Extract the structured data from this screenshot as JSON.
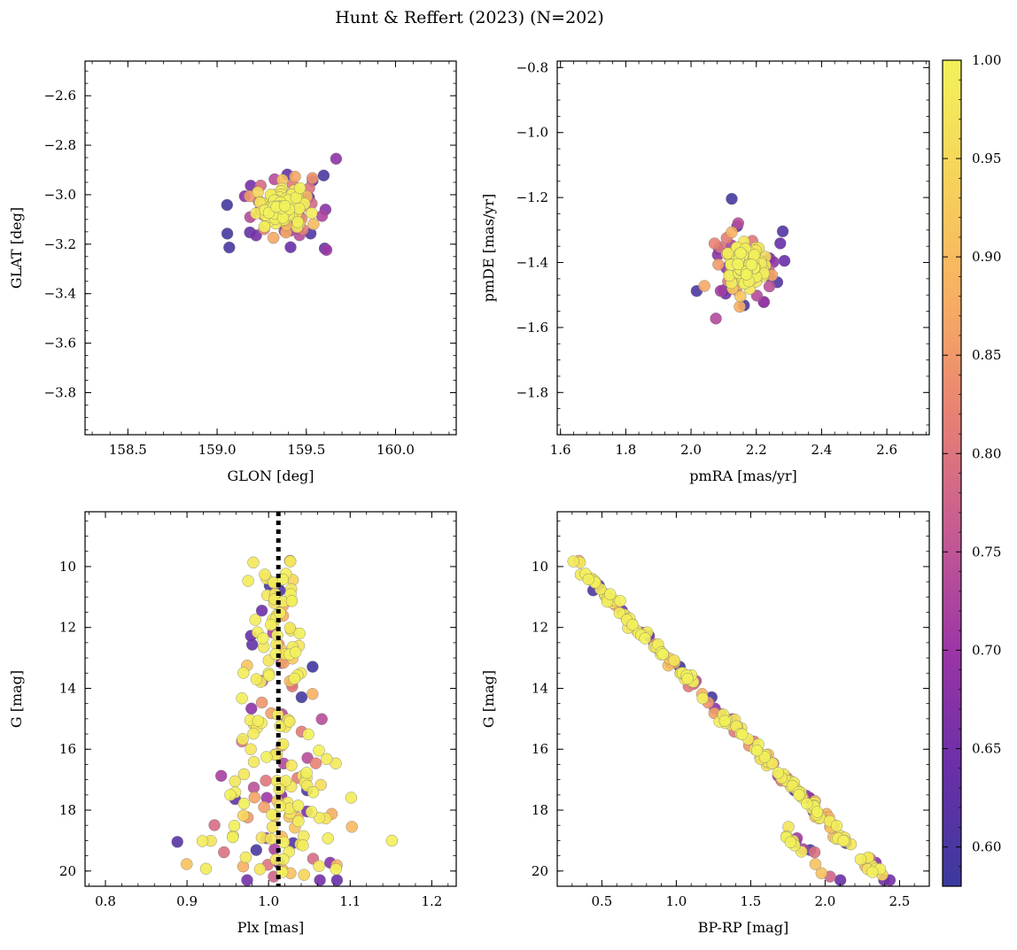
{
  "figure": {
    "title": "Hunt & Reffert (2023) (N=202)"
  },
  "colorbar": {
    "range": [
      0.58,
      1.0
    ],
    "ticks": [
      "0.60",
      "0.65",
      "0.70",
      "0.75",
      "0.80",
      "0.85",
      "0.90",
      "0.95",
      "1.00"
    ],
    "stops": [
      "#3b3a9e",
      "#6a2fa8",
      "#9c35a6",
      "#c65b92",
      "#e88173",
      "#f8af62",
      "#f6d35a",
      "#f2f25a"
    ]
  },
  "chart_data": [
    {
      "id": "sky",
      "type": "scatter",
      "xlabel": "GLON [deg]",
      "ylabel": "GLAT [deg]",
      "xlim": [
        158.26,
        160.34
      ],
      "ylim": [
        -3.97,
        -2.46
      ],
      "xticks": [
        "158.5",
        "159.0",
        "159.5",
        "160.0"
      ],
      "yticks": [
        "-3.8",
        "-3.6",
        "-3.4",
        "-3.2",
        "-3.0",
        "-2.8",
        "-2.6"
      ]
    },
    {
      "id": "pm",
      "type": "scatter",
      "xlabel": "pmRA [mas/yr]",
      "ylabel": "pmDE [mas/yr]",
      "xlim": [
        1.59,
        2.73
      ],
      "ylim": [
        -1.93,
        -0.78
      ],
      "xticks": [
        "1.6",
        "1.8",
        "2.0",
        "2.2",
        "2.4",
        "2.6"
      ],
      "yticks": [
        "-1.8",
        "-1.6",
        "-1.4",
        "-1.2",
        "-1.0",
        "-0.8"
      ]
    },
    {
      "id": "plx",
      "type": "scatter",
      "xlabel": "Plx [mas]",
      "ylabel": "G [mag]",
      "xlim": [
        0.775,
        1.23
      ],
      "ylim": [
        20.5,
        8.2
      ],
      "xticks": [
        "0.8",
        "0.9",
        "1.0",
        "1.1",
        "1.2"
      ],
      "yticks": [
        "10",
        "12",
        "14",
        "16",
        "18",
        "20"
      ],
      "vline": 1.012
    },
    {
      "id": "cmd",
      "type": "scatter",
      "xlabel": "BP-RP [mag]",
      "ylabel": "G [mag]",
      "xlim": [
        0.2,
        2.7
      ],
      "ylim": [
        20.5,
        8.2
      ],
      "xticks": [
        "0.5",
        "1.0",
        "1.5",
        "2.0",
        "2.5"
      ],
      "yticks": [
        "10",
        "12",
        "14",
        "16",
        "18",
        "20"
      ]
    }
  ]
}
